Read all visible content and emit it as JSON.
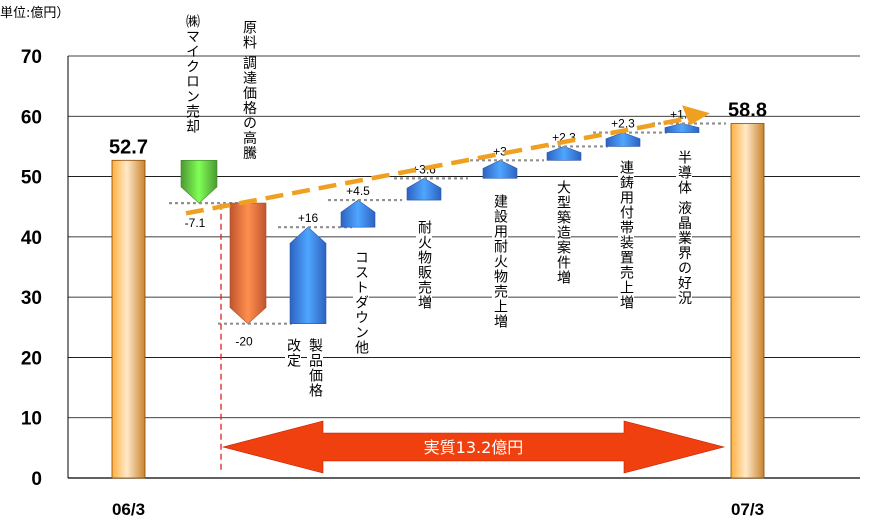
{
  "chart_data": {
    "type": "waterfall",
    "unit_label": "単位:億円）",
    "y_ticks": [
      "0",
      "10",
      "20",
      "30",
      "40",
      "50",
      "60",
      "70"
    ],
    "ylim": [
      0,
      70
    ],
    "grid": true,
    "start": {
      "category": "06/3",
      "value": 52.7,
      "label": "52.7"
    },
    "end": {
      "category": "07/3",
      "value": 58.8,
      "label": "58.8"
    },
    "steps": [
      {
        "name": "㈱マイクロン売却",
        "delta": -7.1,
        "label": "-7.1",
        "color": "#5fbf3f"
      },
      {
        "name": "原料・調達価格の高騰",
        "delta": -20,
        "label": "-20",
        "color": "#f06a3a"
      },
      {
        "name": "製品価格改定",
        "delta": 16,
        "label": "+16",
        "color": "#3a7bf0"
      },
      {
        "name": "コストダウン他",
        "delta": 4.5,
        "label": "+4.5",
        "color": "#3a7bf0"
      },
      {
        "name": "耐火物販売増",
        "delta": 3.6,
        "label": "+3.6",
        "color": "#3a7bf0"
      },
      {
        "name": "建設用耐火物売上増",
        "delta": 3,
        "label": "+3",
        "color": "#3a7bf0"
      },
      {
        "name": "大型築造案件増",
        "delta": 2.3,
        "label": "+2.3",
        "color": "#3a7bf0"
      },
      {
        "name": "連鋳用付帯装置売上増",
        "delta": 2.3,
        "label": "+2.3",
        "color": "#3a7bf0"
      },
      {
        "name": "半導体・液晶業界の好況",
        "delta": 1.5,
        "label": "+1.5",
        "color": "#3a7bf0"
      }
    ],
    "annotation": {
      "text": "実質13.2億円"
    },
    "colors": {
      "total_bar": "#f5a038",
      "arrow": "#f04010",
      "trend": "#f0a020",
      "connector": "#909090",
      "divider": "#e02020"
    }
  },
  "labels": {
    "micron": "㈱マイクロン売却",
    "material": "原料 調達価格の高騰",
    "price1": "製品価格",
    "price2": "改定",
    "cost": "コストダウン他",
    "refractory": "耐火物販売増",
    "construction": "建設用耐火物売上増",
    "large": "大型築造案件増",
    "casting": "連鋳用付帯装置売上増",
    "semi": "半導体 液晶業界の好況"
  }
}
